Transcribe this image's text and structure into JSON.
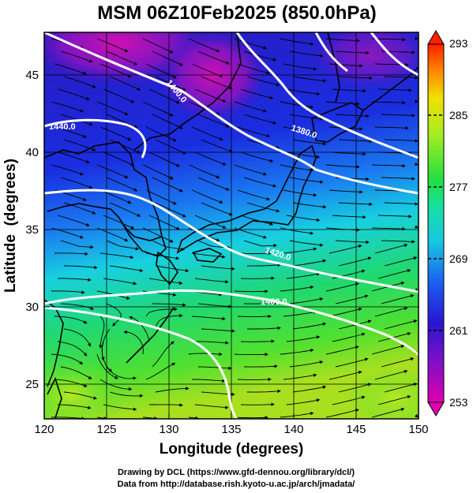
{
  "title": "MSM 06Z10Feb2025 (850.0hPa)",
  "x_axis": {
    "label": "Longitude (degrees)",
    "range": [
      120,
      150
    ],
    "ticks": [
      "120",
      "125",
      "130",
      "135",
      "140",
      "145",
      "150"
    ]
  },
  "y_axis": {
    "label": "Latitude  (degrees)",
    "range": [
      22.4,
      47.6
    ],
    "ticks": [
      "25",
      "30",
      "35",
      "40",
      "45"
    ]
  },
  "colorbar": {
    "range": [
      253,
      293
    ],
    "ticks": [
      "293",
      "285",
      "277",
      "269",
      "261",
      "253"
    ],
    "colors": [
      "#e000b0",
      "#3a10c8",
      "#1a5cf0",
      "#18e0d0",
      "#20e040",
      "#a8ec20",
      "#f0e000",
      "#ff8000",
      "#ff2000"
    ]
  },
  "contour_labels": [
    "1400.0",
    "1440.0",
    "1380.0",
    "1420.0",
    "1460.0"
  ],
  "credits": {
    "line1": "Drawing by DCL (https://www.gfd-dennou.org/library/dcl/)",
    "line2": "Data from http://database.rish.kyoto-u.ac.jp/arch/jmadata/"
  },
  "colors": {
    "contour": "#ffffff",
    "coast": "#000000",
    "streamline": "#000000"
  }
}
